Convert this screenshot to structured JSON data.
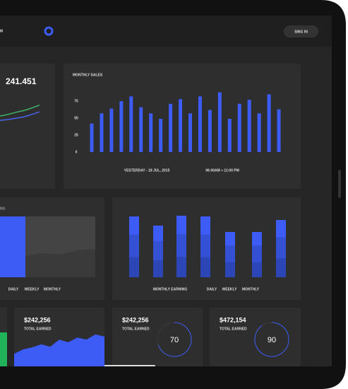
{
  "header": {
    "brand": "M",
    "signin": "SING IN"
  },
  "stat_card": {
    "value": "241.451",
    "ylim": [
      0,
      100
    ],
    "lines": [
      {
        "color": "#3fb56a",
        "values": [
          18,
          22,
          27,
          31,
          37,
          44
        ]
      },
      {
        "color": "#4a64f2",
        "values": [
          8,
          10,
          13,
          16,
          22,
          28
        ]
      }
    ]
  },
  "monthly_sales": {
    "title": "MONTHLY SALES",
    "color": "#3d5bf5",
    "ylim": [
      0,
      100
    ],
    "yticks": [
      0,
      25,
      50,
      75
    ],
    "values": [
      42,
      57,
      64,
      75,
      82,
      66,
      57,
      49,
      71,
      78,
      57,
      82,
      62,
      88,
      49,
      71,
      77,
      57,
      85,
      63
    ],
    "footer_left": "YESTERDAY - 18 JUL, 2015",
    "footer_right": "06:00AM » 11:00 PM"
  },
  "period_card": {
    "label": "NG",
    "tabs": [
      "DAILY",
      "WEEKLY",
      "MONTHLY"
    ]
  },
  "monthly_earning": {
    "title": "MONTHLY EARNING",
    "color": "#3d5bf5",
    "ylim": [
      0,
      100
    ],
    "values": [
      86,
      73,
      87,
      86,
      64,
      64,
      81
    ],
    "tabs": [
      "DAILY",
      "WEEKLY",
      "MONTHLY"
    ]
  },
  "earned_cards": [
    {
      "amount": "$242,256",
      "label": "TOTAL EARNED",
      "ylim": [
        0,
        100
      ],
      "area": [
        37,
        50,
        56,
        65,
        58,
        79,
        71,
        85,
        79,
        94,
        88
      ]
    },
    {
      "amount": "$242,256",
      "label": "TOTAL EARNED",
      "progress": 70
    },
    {
      "amount": "$472,154",
      "label": "TOTAL EARNED",
      "progress": 90
    }
  ]
}
